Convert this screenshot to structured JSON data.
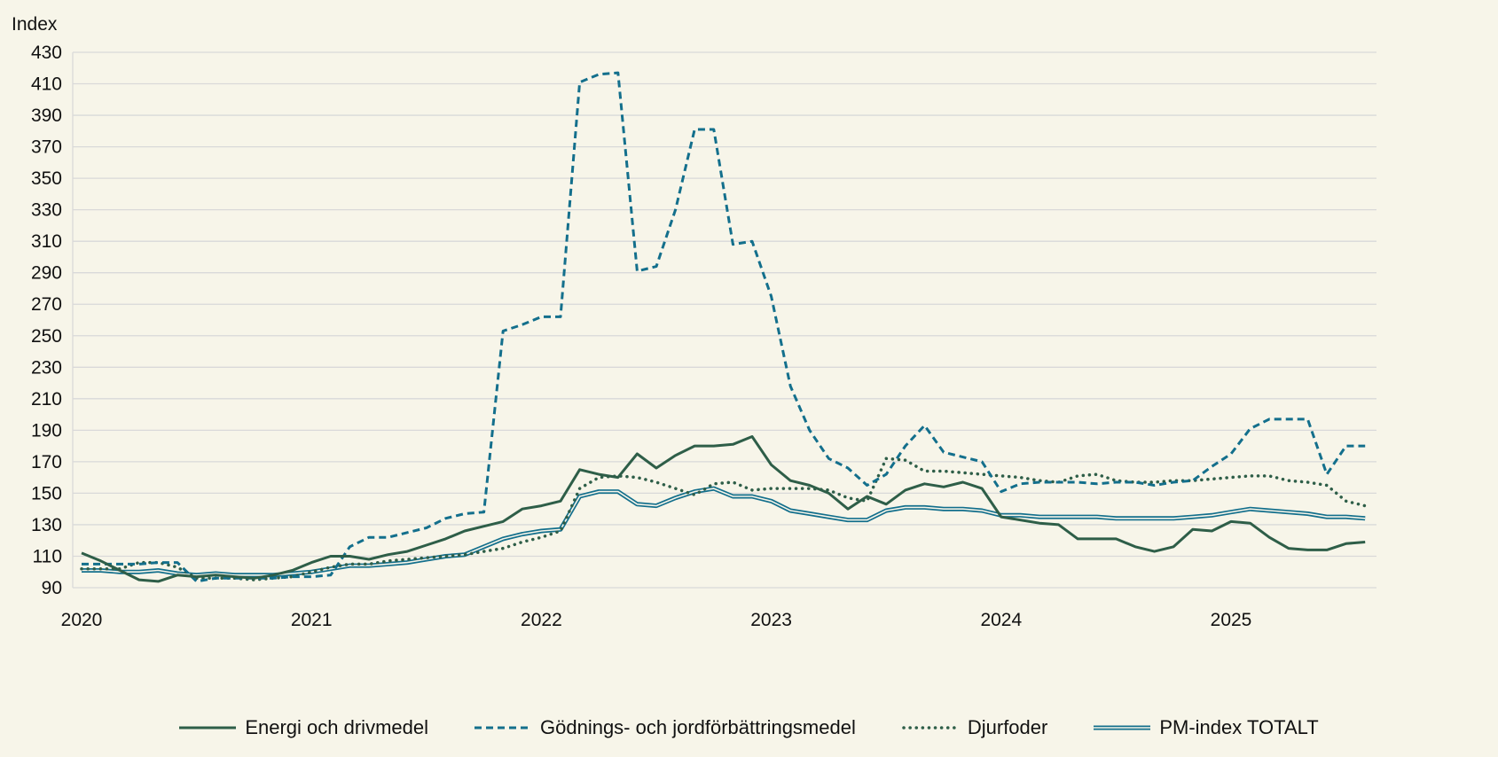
{
  "chart_data": {
    "type": "line",
    "ylabel": "Index",
    "ylim": [
      90,
      430
    ],
    "yticks": [
      90,
      110,
      130,
      150,
      170,
      190,
      210,
      230,
      250,
      270,
      290,
      310,
      330,
      350,
      370,
      390,
      410,
      430
    ],
    "xticks": [
      "2020",
      "2021",
      "2022",
      "2023",
      "2024",
      "2025"
    ],
    "x_start": "2020-01",
    "x_frequency": "monthly",
    "grid": true,
    "legend_position": "bottom",
    "colors": {
      "dark_green": "#2e5e48",
      "teal": "#136f8c",
      "grid": "#d9d9d9",
      "background": "#f7f5e9"
    },
    "series": [
      {
        "name": "Energi och drivmedel",
        "style": "solid",
        "color": "#2e5e48",
        "values": [
          112,
          107,
          101,
          95,
          94,
          98,
          97,
          98,
          97,
          96,
          98,
          101,
          106,
          110,
          110,
          108,
          111,
          113,
          117,
          121,
          126,
          129,
          132,
          140,
          142,
          145,
          165,
          162,
          160,
          175,
          166,
          174,
          180,
          180,
          181,
          186,
          168,
          158,
          155,
          150,
          140,
          148,
          143,
          152,
          156,
          154,
          157,
          153,
          135,
          133,
          131,
          130,
          121,
          121,
          121,
          116,
          113,
          116,
          127,
          126,
          132,
          131,
          122,
          115,
          114,
          114,
          118,
          119
        ]
      },
      {
        "name": "Gödnings- och jordförbättringsmedel",
        "style": "dashed",
        "color": "#136f8c",
        "values": [
          105,
          105,
          105,
          105,
          106,
          106,
          94,
          96,
          96,
          96,
          96,
          97,
          97,
          98,
          116,
          122,
          122,
          125,
          128,
          134,
          137,
          138,
          253,
          257,
          262,
          262,
          411,
          416,
          417,
          291,
          294,
          330,
          381,
          381,
          308,
          310,
          275,
          218,
          190,
          172,
          166,
          155,
          162,
          180,
          193,
          176,
          173,
          170,
          151,
          156,
          157,
          157,
          157,
          156,
          157,
          157,
          155,
          157,
          158,
          167,
          175,
          191,
          197,
          197,
          197,
          162,
          180,
          180
        ]
      },
      {
        "name": "Djurfoder",
        "style": "dotted",
        "color": "#2e5e48",
        "values": [
          102,
          102,
          102,
          106,
          106,
          103,
          96,
          96,
          96,
          95,
          96,
          97,
          100,
          103,
          105,
          105,
          107,
          108,
          109,
          110,
          111,
          113,
          115,
          119,
          122,
          126,
          153,
          160,
          161,
          160,
          157,
          153,
          149,
          156,
          157,
          152,
          153,
          153,
          153,
          152,
          147,
          145,
          172,
          171,
          164,
          164,
          163,
          162,
          161,
          160,
          158,
          157,
          161,
          162,
          158,
          157,
          157,
          158,
          158,
          159,
          160,
          161,
          161,
          158,
          157,
          155,
          145,
          142
        ]
      },
      {
        "name": "PM-index TOTALT",
        "style": "double",
        "color": "#136f8c",
        "values": [
          101,
          101,
          100,
          100,
          101,
          99,
          98,
          99,
          98,
          98,
          98,
          99,
          100,
          102,
          104,
          104,
          105,
          106,
          108,
          110,
          111,
          116,
          121,
          124,
          126,
          127,
          148,
          151,
          151,
          143,
          142,
          147,
          151,
          153,
          148,
          148,
          145,
          139,
          137,
          135,
          133,
          133,
          139,
          141,
          141,
          140,
          140,
          139,
          136,
          136,
          135,
          135,
          135,
          135,
          134,
          134,
          134,
          134,
          135,
          136,
          138,
          140,
          139,
          138,
          137,
          135,
          135,
          134
        ]
      }
    ]
  }
}
